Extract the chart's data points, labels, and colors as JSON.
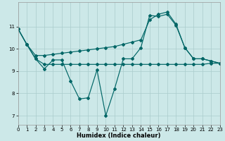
{
  "xlabel": "Humidex (Indice chaleur)",
  "bg_color": "#cce8e8",
  "line_color": "#006666",
  "grid_color": "#aacccc",
  "xlim": [
    0,
    23
  ],
  "ylim": [
    6.6,
    12.1
  ],
  "yticks": [
    7,
    8,
    9,
    10,
    11
  ],
  "xticks": [
    0,
    1,
    2,
    3,
    4,
    5,
    6,
    7,
    8,
    9,
    10,
    11,
    12,
    13,
    14,
    15,
    16,
    17,
    18,
    19,
    20,
    21,
    22,
    23
  ],
  "line1_x": [
    0,
    1,
    2,
    3,
    4,
    5,
    6,
    7,
    8,
    9,
    10,
    11,
    12,
    13,
    14,
    15,
    16,
    17,
    18,
    19,
    20,
    21,
    22,
    23
  ],
  "line1_y": [
    10.9,
    10.2,
    9.55,
    9.1,
    9.5,
    9.5,
    8.55,
    7.75,
    7.8,
    9.05,
    7.0,
    8.2,
    9.55,
    9.55,
    10.05,
    11.5,
    11.45,
    11.55,
    11.05,
    10.05,
    9.55,
    9.55,
    9.45,
    9.35
  ],
  "line2_x": [
    0,
    1,
    2,
    3,
    4,
    5,
    6,
    7,
    8,
    9,
    10,
    11,
    12,
    13,
    14,
    15,
    16,
    17,
    18,
    19,
    20,
    21,
    22,
    23
  ],
  "line2_y": [
    10.9,
    10.2,
    9.55,
    9.3,
    9.3,
    9.3,
    9.3,
    9.3,
    9.3,
    9.3,
    9.3,
    9.3,
    9.3,
    9.3,
    9.3,
    9.3,
    9.3,
    9.3,
    9.3,
    9.3,
    9.3,
    9.3,
    9.35,
    9.35
  ],
  "line3_x": [
    0,
    1,
    2,
    3,
    4,
    5,
    6,
    7,
    8,
    9,
    10,
    11,
    12,
    13,
    14,
    15,
    16,
    17,
    18,
    19,
    20,
    21,
    22,
    23
  ],
  "line3_y": [
    10.9,
    10.2,
    9.7,
    9.7,
    9.75,
    9.8,
    9.85,
    9.9,
    9.95,
    10.0,
    10.05,
    10.1,
    10.2,
    10.3,
    10.4,
    11.3,
    11.55,
    11.65,
    11.1,
    10.05,
    9.55,
    9.55,
    9.45,
    9.35
  ]
}
